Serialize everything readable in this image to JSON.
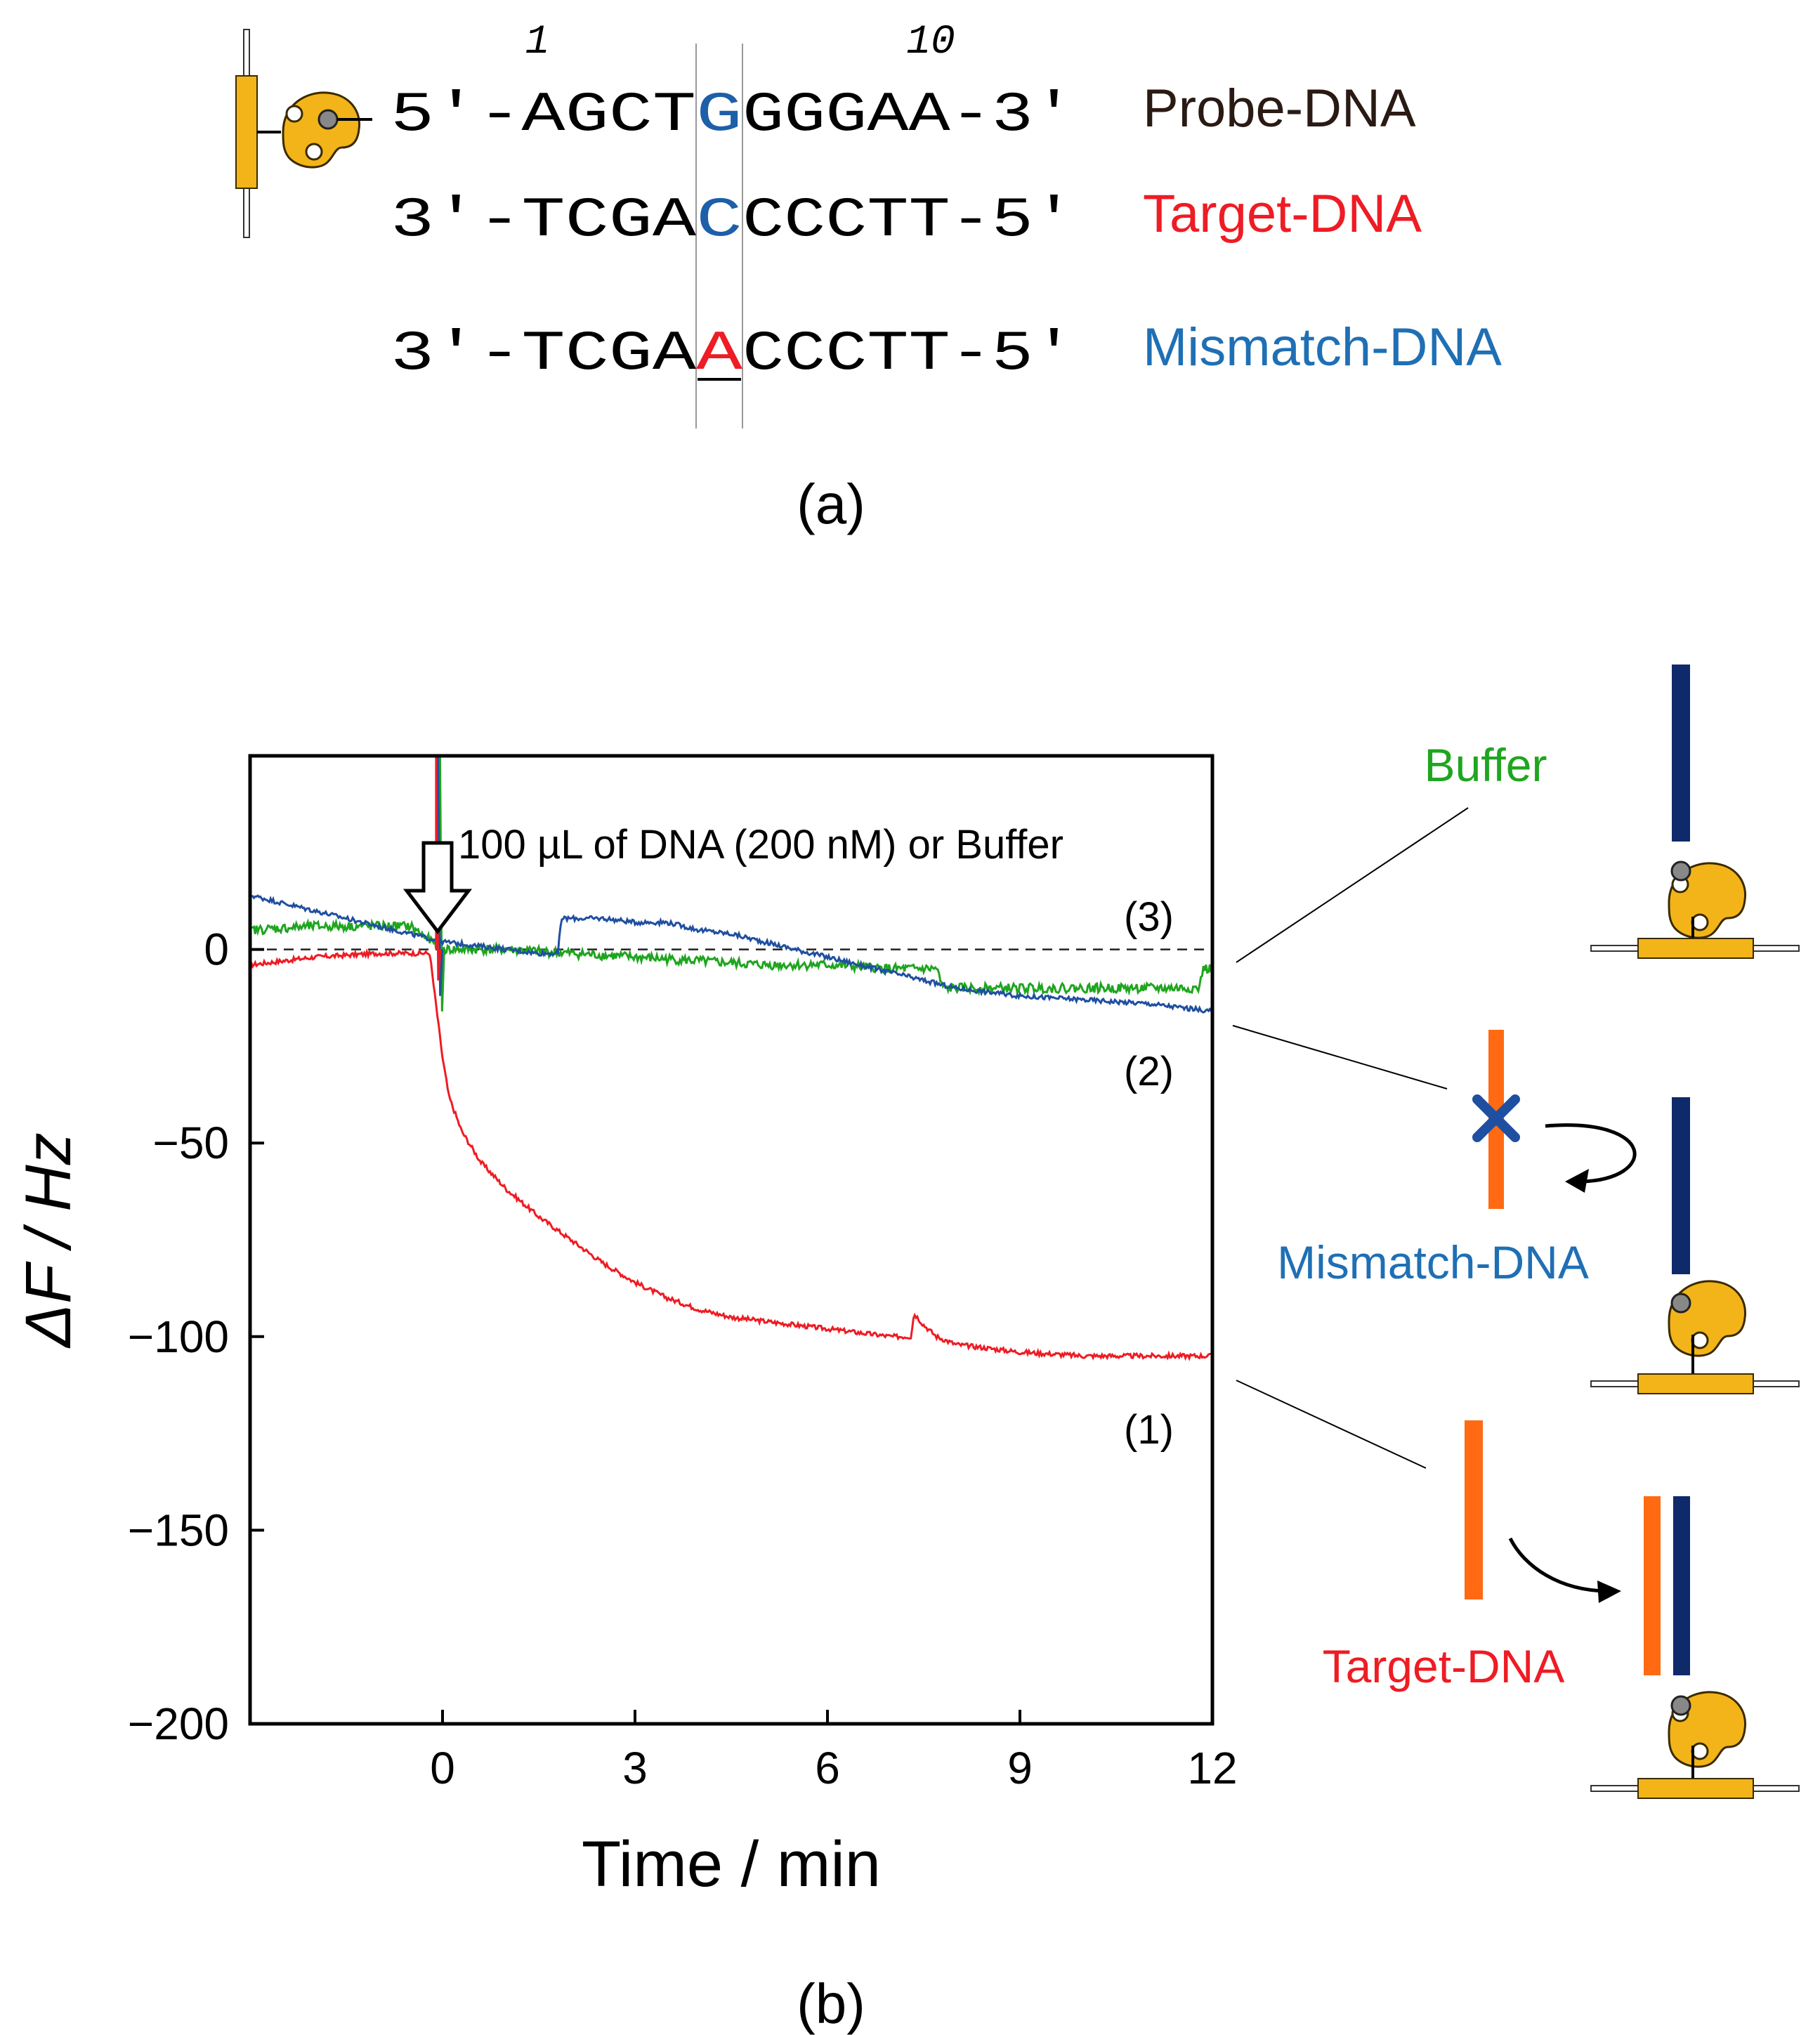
{
  "panel_a": {
    "position_numbers": [
      "1",
      "10"
    ],
    "sequences": [
      {
        "prefix": "5'-AGCT",
        "mid": "G",
        "suffix": "GGGAA-3'",
        "label": "Probe-DNA",
        "mid_color": "#1d5fa8",
        "label_color": "#2a1a14"
      },
      {
        "prefix": "3'-TCGA",
        "mid": "C",
        "suffix": "CCCTT-5'",
        "label": "Target-DNA",
        "mid_color": "#1d5fa8",
        "label_color": "#ee1c24"
      },
      {
        "prefix": "3'-TCGA",
        "mid": "A",
        "suffix": "CCCTT-5'",
        "label": "Mismatch-DNA",
        "mid_color": "#ee1c24",
        "label_color": "#1f6fb5"
      }
    ],
    "caption": "(a)"
  },
  "panel_b": {
    "caption": "(b)",
    "annotation": "100 µL of DNA (200 nM) or Buffer",
    "curve_labels": [
      "(3)",
      "(2)",
      "(1)"
    ],
    "schematic": {
      "buffer_label": "Buffer",
      "mismatch_label": "Mismatch-DNA",
      "target_label": "Target-DNA"
    }
  },
  "colors": {
    "target": "#ee1c24",
    "mismatch": "#1f4fa0",
    "buffer": "#1fa51f",
    "probe_strand": "#0e2a6b",
    "added_strand": "#ff6a13",
    "gold": "#f2b418"
  },
  "chart_data": {
    "type": "line",
    "xlabel": "Time / min",
    "ylabel": "ΔF / Hz",
    "xlim": [
      -3,
      12
    ],
    "ylim": [
      -200,
      50
    ],
    "xticks": [
      0,
      3,
      6,
      9,
      12
    ],
    "yticks": [
      0,
      -50,
      -100,
      -150,
      -200
    ],
    "reference_line": {
      "y": 0,
      "style": "dashed"
    },
    "series": [
      {
        "name": "Target-DNA",
        "curve_label": "(1)",
        "color": "#ee1c24",
        "x": [
          -3,
          -2.0,
          -1.0,
          -0.2,
          0,
          0.1,
          0.3,
          0.6,
          1.0,
          1.5,
          2.0,
          2.5,
          3.0,
          3.5,
          4.0,
          4.5,
          5.0,
          5.5,
          6.0,
          6.5,
          7.0,
          7.3,
          7.35,
          7.5,
          7.7,
          8.0,
          8.5,
          9.0,
          10.0,
          11.0,
          12.0
        ],
        "y": [
          -4,
          -2,
          -1,
          -1,
          -28,
          -38,
          -47,
          -55,
          -62,
          -69,
          -75,
          -81,
          -86,
          -90,
          -93,
          -95,
          -96,
          -97,
          -98,
          -99,
          -100,
          -100,
          -94,
          -97,
          -100,
          -102,
          -103,
          -104,
          -105,
          -105,
          -105
        ]
      },
      {
        "name": "Mismatch-DNA",
        "curve_label": "(2)",
        "color": "#1f4fa0",
        "x": [
          -3,
          -2.5,
          -2.0,
          -1.5,
          -1.0,
          -0.5,
          0,
          0.5,
          1.0,
          1.5,
          1.8,
          1.85,
          2.5,
          3.0,
          3.5,
          4.0,
          4.5,
          5.0,
          5.5,
          6.0,
          6.5,
          7.0,
          7.5,
          8.0,
          9.0,
          10.0,
          11.0,
          12.0
        ],
        "y": [
          14,
          12,
          10,
          8,
          6,
          4,
          2,
          1,
          0,
          -1,
          -1,
          8,
          8,
          7,
          7,
          5,
          4,
          2,
          0,
          -2,
          -4,
          -6,
          -8,
          -10,
          -12,
          -13,
          -14,
          -16
        ]
      },
      {
        "name": "Buffer",
        "curve_label": "(3)",
        "color": "#1fa51f",
        "x": [
          -3,
          -2.0,
          -1.0,
          -0.5,
          0,
          0.5,
          1.0,
          2.0,
          3.0,
          4.0,
          5.0,
          6.0,
          7.0,
          7.7,
          7.8,
          8.5,
          9.0,
          10.0,
          11.0,
          11.8,
          11.85,
          12.0
        ],
        "y": [
          5,
          6,
          6,
          6,
          0,
          0,
          0,
          -1,
          -2,
          -3,
          -4,
          -4,
          -5,
          -5,
          -10,
          -10,
          -10,
          -10,
          -10,
          -10,
          -5,
          -5
        ]
      }
    ]
  }
}
